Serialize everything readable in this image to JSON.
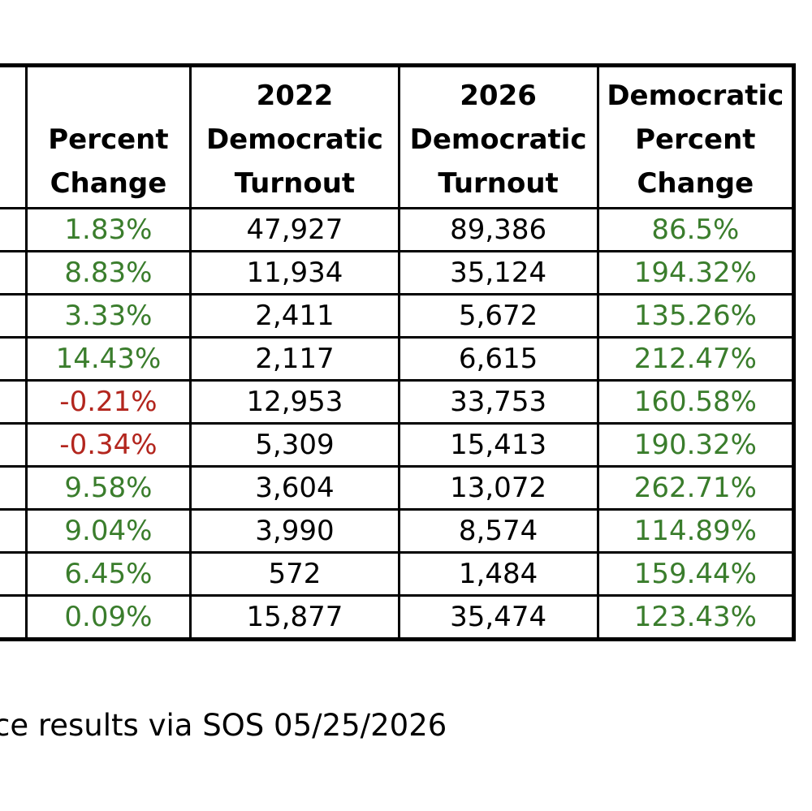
{
  "table": {
    "headers": [
      [
        "",
        "Percent",
        "Change"
      ],
      [
        "2022",
        "Democratic",
        "Turnout"
      ],
      [
        "2026",
        "Democratic",
        "Turnout"
      ],
      [
        "Democratic",
        "Percent",
        "Change"
      ]
    ],
    "rows": [
      {
        "pct": "1.83%",
        "t2022": "47,927",
        "t2026": "89,386",
        "dem_pct": "86.5%"
      },
      {
        "pct": "8.83%",
        "t2022": "11,934",
        "t2026": "35,124",
        "dem_pct": "194.32%"
      },
      {
        "pct": "3.33%",
        "t2022": "2,411",
        "t2026": "5,672",
        "dem_pct": "135.26%"
      },
      {
        "pct": "14.43%",
        "t2022": "2,117",
        "t2026": "6,615",
        "dem_pct": "212.47%"
      },
      {
        "pct": "-0.21%",
        "t2022": "12,953",
        "t2026": "33,753",
        "dem_pct": "160.58%"
      },
      {
        "pct": "-0.34%",
        "t2022": "5,309",
        "t2026": "15,413",
        "dem_pct": "190.32%"
      },
      {
        "pct": "9.58%",
        "t2022": "3,604",
        "t2026": "13,072",
        "dem_pct": "262.71%"
      },
      {
        "pct": "9.04%",
        "t2022": "3,990",
        "t2026": "8,574",
        "dem_pct": "114.89%"
      },
      {
        "pct": "6.45%",
        "t2022": "572",
        "t2026": "1,484",
        "dem_pct": "159.44%"
      },
      {
        "pct": "0.09%",
        "t2022": "15,877",
        "t2026": "35,474",
        "dem_pct": "123.43%"
      }
    ]
  },
  "colors": {
    "positive": "#3a7d2c",
    "negative": "#b3261e"
  },
  "footnote": "ce results via SOS 05/25/2026"
}
